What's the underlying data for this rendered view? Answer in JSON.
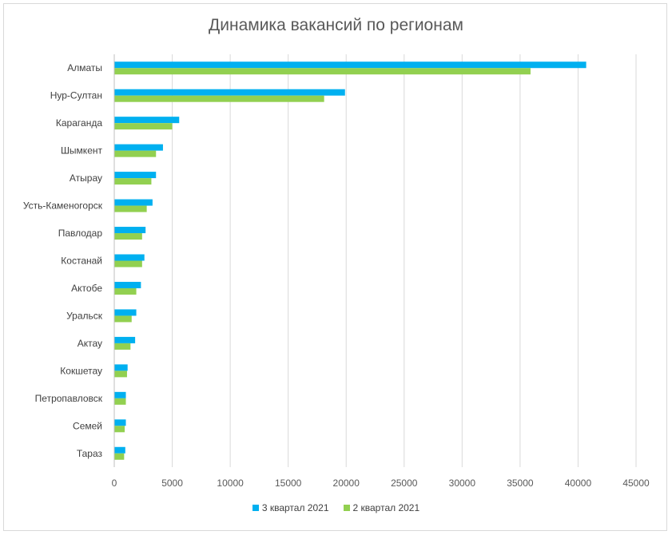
{
  "chart_data": {
    "type": "bar",
    "orientation": "horizontal",
    "title": "Динамика вакансий по регионам",
    "categories": [
      "Алматы",
      "Нур-Султан",
      "Караганда",
      "Шымкент",
      "Атырау",
      "Усть-Каменогорск",
      "Павлодар",
      "Костанай",
      "Актобе",
      "Уральск",
      "Актау",
      "Кокшетау",
      "Петропавловск",
      "Семей",
      "Тараз"
    ],
    "series": [
      {
        "name": "3 квартал 2021",
        "color": "#00b0f0",
        "values": [
          40700,
          19900,
          5600,
          4200,
          3600,
          3300,
          2700,
          2600,
          2300,
          1900,
          1800,
          1150,
          1000,
          1000,
          950
        ]
      },
      {
        "name": "2 квартал 2021",
        "color": "#92d050",
        "values": [
          35900,
          18100,
          5000,
          3600,
          3200,
          2800,
          2400,
          2400,
          1900,
          1500,
          1400,
          1100,
          1000,
          900,
          850
        ]
      }
    ],
    "xlim": [
      0,
      45000
    ],
    "xticks": [
      "0",
      "5000",
      "10000",
      "15000",
      "20000",
      "25000",
      "30000",
      "35000",
      "40000",
      "45000"
    ],
    "grid": true,
    "legend_position": "bottom"
  }
}
